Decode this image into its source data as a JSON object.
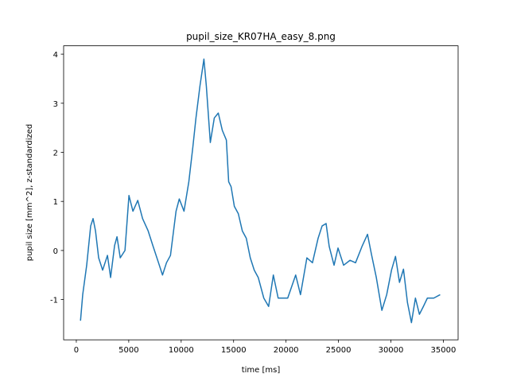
{
  "chart_data": {
    "type": "line",
    "title": "pupil_size_KR07HA_easy_8.png",
    "x_label": "time [ms]",
    "y_label": "pupil size [mm^2], z-standardized",
    "x": [
      400,
      610,
      990,
      1370,
      1600,
      1830,
      2130,
      2510,
      2970,
      3270,
      3650,
      3880,
      4190,
      4640,
      5020,
      5400,
      5860,
      6320,
      6850,
      7300,
      7840,
      8220,
      8600,
      8980,
      9510,
      9820,
      10270,
      10730,
      11110,
      11410,
      11790,
      12170,
      12400,
      12780,
      13160,
      13540,
      13920,
      14310,
      14530,
      14760,
      15070,
      15450,
      15830,
      16210,
      16590,
      16970,
      17350,
      17880,
      18340,
      18790,
      19250,
      19710,
      20160,
      20920,
      21380,
      21990,
      22520,
      23060,
      23440,
      23820,
      24120,
      24580,
      24960,
      25490,
      26100,
      26630,
      27240,
      27770,
      28150,
      28610,
      29140,
      29600,
      30060,
      30440,
      30820,
      31200,
      31580,
      31960,
      32340,
      32720,
      33100,
      33480,
      34090,
      34700
    ],
    "series": [
      {
        "name": "pupil size",
        "color": "#1f77b4",
        "values": [
          -1.43,
          -0.9,
          -0.3,
          0.5,
          0.65,
          0.4,
          -0.15,
          -0.4,
          -0.1,
          -0.55,
          0.1,
          0.28,
          -0.15,
          0,
          1.12,
          0.8,
          1.02,
          0.65,
          0.4,
          0.1,
          -0.25,
          -0.5,
          -0.25,
          -0.1,
          0.8,
          1.05,
          0.8,
          1.4,
          2.1,
          2.7,
          3.35,
          3.9,
          3.35,
          2.2,
          2.7,
          2.8,
          2.45,
          2.25,
          1.4,
          1.3,
          0.9,
          0.75,
          0.4,
          0.25,
          -0.15,
          -0.4,
          -0.55,
          -0.97,
          -1.14,
          -0.5,
          -0.97,
          -0.97,
          -0.97,
          -0.5,
          -0.9,
          -0.15,
          -0.25,
          0.25,
          0.5,
          0.55,
          0.08,
          -0.3,
          0.05,
          -0.3,
          -0.2,
          -0.25,
          0.08,
          0.33,
          -0.08,
          -0.55,
          -1.22,
          -0.9,
          -0.4,
          -0.12,
          -0.65,
          -0.38,
          -1.06,
          -1.47,
          -0.97,
          -1.3,
          -1.14,
          -0.97,
          -0.97,
          -0.9
        ]
      }
    ],
    "xlim": [
      -1210,
      36410
    ],
    "ylim": [
      -1.82,
      4.17
    ],
    "xticks": [
      0,
      5000,
      10000,
      15000,
      20000,
      25000,
      30000,
      35000
    ],
    "yticks": [
      -1,
      0,
      1,
      2,
      3,
      4
    ],
    "grid": false
  }
}
